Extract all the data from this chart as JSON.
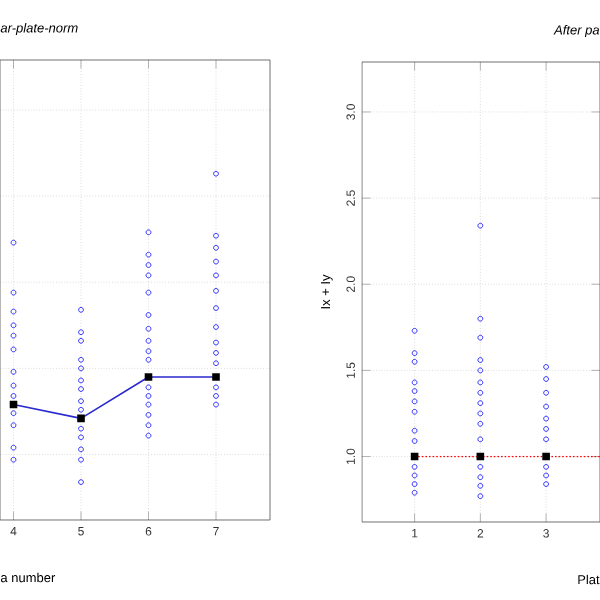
{
  "chart_data": [
    {
      "type": "scatter",
      "title": "ar-plate-norm",
      "xlabel": "a number",
      "xlim": [
        3.8,
        7.8
      ],
      "ylim": [
        0.62,
        3.29
      ],
      "xticks": [
        4,
        5,
        6,
        7
      ],
      "yticks": [
        1,
        1.5,
        2,
        2.5,
        3
      ],
      "tick_labels": "x",
      "grid": true,
      "marker": "circle",
      "series": [
        {
          "color": "#0000ff",
          "x": [
            4,
            4,
            4,
            4,
            4,
            4,
            4,
            4,
            4,
            4,
            4,
            4,
            4
          ],
          "values": [
            2.23,
            1.94,
            1.83,
            1.75,
            1.69,
            1.61,
            1.48,
            1.4,
            1.34,
            1.24,
            1.17,
            1.04,
            0.97
          ]
        },
        {
          "color": "#0000ff",
          "x": [
            5,
            5,
            5,
            5,
            5,
            5,
            5,
            5,
            5,
            5,
            5,
            5,
            5,
            5
          ],
          "values": [
            1.84,
            1.71,
            1.66,
            1.55,
            1.5,
            1.43,
            1.38,
            1.31,
            1.26,
            1.15,
            1.1,
            1.03,
            0.97,
            0.84
          ]
        },
        {
          "color": "#0000ff",
          "x": [
            6,
            6,
            6,
            6,
            6,
            6,
            6,
            6,
            6,
            6,
            6,
            6,
            6,
            6,
            6,
            6
          ],
          "values": [
            2.29,
            2.16,
            2.1,
            2.04,
            1.94,
            1.81,
            1.73,
            1.66,
            1.6,
            1.55,
            1.39,
            1.34,
            1.29,
            1.23,
            1.17,
            1.11
          ]
        },
        {
          "color": "#0000ff",
          "x": [
            7,
            7,
            7,
            7,
            7,
            7,
            7,
            7,
            7,
            7,
            7,
            7,
            7,
            7
          ],
          "values": [
            2.63,
            2.27,
            2.2,
            2.12,
            2.04,
            1.95,
            1.85,
            1.74,
            1.65,
            1.59,
            1.53,
            1.39,
            1.34,
            1.29
          ]
        },
        {
          "type": "line",
          "marker": "none",
          "color": "#2a2ad0",
          "x": [
            4,
            5,
            6,
            7
          ],
          "values": [
            1.29,
            1.21,
            1.45,
            1.45
          ]
        },
        {
          "marker": "square",
          "color": "#000000",
          "x": [
            4,
            5,
            6,
            7
          ],
          "values": [
            1.29,
            1.21,
            1.45,
            1.45
          ]
        }
      ]
    },
    {
      "type": "scatter",
      "title": "After pa",
      "xlabel": "Plat",
      "ylabel": "Ix + Iy",
      "xlim": [
        0.2,
        3.82
      ],
      "ylim": [
        0.62,
        3.29
      ],
      "xticks": [
        1,
        2,
        3
      ],
      "yticks": [
        {
          "value": 1,
          "label": "1.0"
        },
        {
          "value": 1.5,
          "label": "1.5"
        },
        {
          "value": 2,
          "label": "2.0"
        },
        {
          "value": 2.5,
          "label": "2.5"
        },
        {
          "value": 3,
          "label": "3.0"
        }
      ],
      "grid": true,
      "marker": "circle",
      "ref_lines": [
        {
          "axis": "y",
          "value": 1,
          "color": "#ff0000",
          "line_style": "dotted"
        }
      ],
      "series": [
        {
          "color": "#0000ff",
          "x": [
            1,
            1,
            1,
            1,
            1,
            1,
            1,
            1,
            1,
            1,
            1,
            1,
            1
          ],
          "values": [
            1.73,
            1.6,
            1.55,
            1.43,
            1.38,
            1.32,
            1.26,
            1.15,
            1.09,
            0.94,
            0.89,
            0.84,
            0.79
          ]
        },
        {
          "color": "#0000ff",
          "x": [
            2,
            2,
            2,
            2,
            2,
            2,
            2,
            2,
            2,
            2,
            2,
            2,
            2,
            2,
            2
          ],
          "values": [
            2.34,
            1.8,
            1.69,
            1.56,
            1.5,
            1.43,
            1.37,
            1.31,
            1.25,
            1.19,
            1.1,
            0.94,
            0.88,
            0.83,
            0.77
          ]
        },
        {
          "color": "#0000ff",
          "x": [
            3,
            3,
            3,
            3,
            3,
            3,
            3,
            3,
            3,
            3
          ],
          "values": [
            1.52,
            1.45,
            1.37,
            1.29,
            1.22,
            1.16,
            1.1,
            0.94,
            0.89,
            0.84
          ]
        },
        {
          "marker": "square",
          "color": "#000000",
          "x": [
            1,
            2,
            3
          ],
          "values": [
            1,
            1,
            1
          ]
        }
      ]
    }
  ]
}
